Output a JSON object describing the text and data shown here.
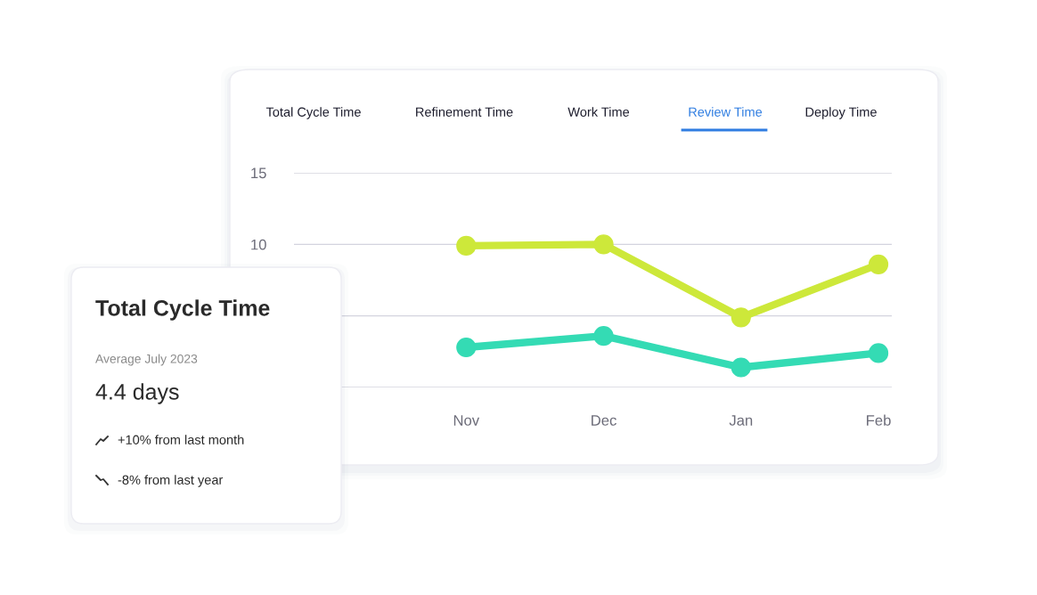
{
  "chart_data": [
    {
      "type": "line",
      "annotations": [
        "Total Cycle Time",
        "Refinement Time",
        "Work Time",
        "Review Time",
        "Deploy Time"
      ],
      "categories": [
        null,
        "Nov",
        "Dec",
        "Jan",
        "Feb"
      ],
      "series": [
        {
          "color": "#cde83a",
          "values": [
            null,
            9.9,
            10.0,
            4.9,
            8.6
          ]
        },
        {
          "color": "#34dbb4",
          "values": [
            null,
            2.8,
            3.6,
            1.4,
            2.4
          ]
        }
      ],
      "ylim": [
        0,
        15
      ],
      "yticks": [
        {
          "value": 0,
          "label": null
        },
        {
          "value": 5,
          "label": null
        },
        10,
        15
      ],
      "grid": "y",
      "marker": "circle",
      "line_style": "solid",
      "legend": false
    },
    {
      "type": "other",
      "title": "Total Cycle Time",
      "annotations": [
        "Average July 2023",
        "4.4 days",
        "+10% from last month",
        "-8% from last year"
      ]
    }
  ]
}
